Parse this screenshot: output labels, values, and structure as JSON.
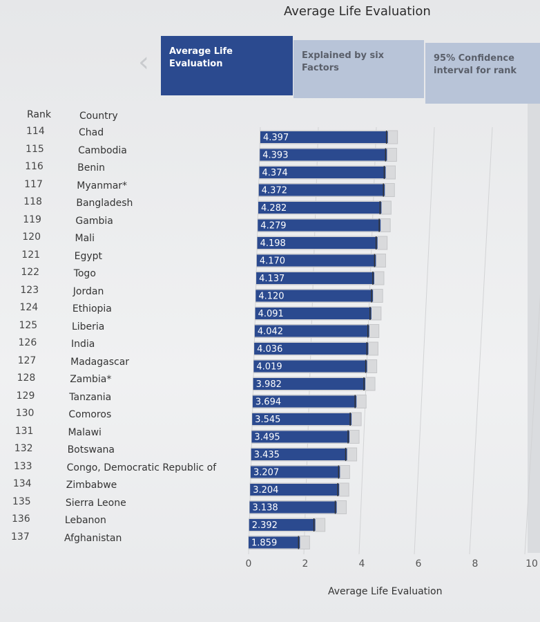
{
  "title": "Average Life Evaluation",
  "tabs": [
    {
      "label_line1": "Average Life",
      "label_line2": "Evaluation"
    },
    {
      "label_line1": "Explained by six",
      "label_line2": "Factors"
    },
    {
      "label_line1": "95% Confidence",
      "label_line2": "interval for rank"
    }
  ],
  "headers": {
    "rank": "Rank",
    "country": "Country"
  },
  "chart_data": {
    "type": "bar",
    "orientation": "horizontal",
    "ranks": [
      114,
      115,
      116,
      117,
      118,
      119,
      120,
      121,
      122,
      123,
      124,
      125,
      126,
      127,
      128,
      129,
      130,
      131,
      132,
      133,
      134,
      135,
      136,
      137
    ],
    "categories": [
      "Chad",
      "Cambodia",
      "Benin",
      "Myanmar*",
      "Bangladesh",
      "Gambia",
      "Mali",
      "Egypt",
      "Togo",
      "Jordan",
      "Ethiopia",
      "Liberia",
      "India",
      "Madagascar",
      "Zambia*",
      "Tanzania",
      "Comoros",
      "Malawi",
      "Botswana",
      "Congo, Democratic Republic of",
      "Zimbabwe",
      "Sierra Leone",
      "Lebanon",
      "Afghanistan"
    ],
    "values": [
      4.397,
      4.393,
      4.374,
      4.372,
      4.282,
      4.279,
      4.198,
      4.17,
      4.137,
      4.12,
      4.091,
      4.042,
      4.036,
      4.019,
      3.982,
      3.694,
      3.545,
      3.495,
      3.435,
      3.207,
      3.204,
      3.138,
      2.392,
      1.859
    ],
    "value_labels": [
      "4.397",
      "4.393",
      "4.374",
      "4.372",
      "4.282",
      "4.279",
      "4.198",
      "4.170",
      "4.137",
      "4.120",
      "4.091",
      "4.042",
      "4.036",
      "4.019",
      "3.982",
      "3.694",
      "3.545",
      "3.495",
      "3.435",
      "3.207",
      "3.204",
      "3.138",
      "2.392",
      "1.859"
    ],
    "xticks": [
      0,
      2,
      4,
      6,
      8,
      10
    ],
    "xlim": [
      0,
      10
    ],
    "xlabel": "Average Life Evaluation",
    "grid": true,
    "colors": {
      "bar": "#2b4a8f",
      "ci": "#d9dadc",
      "ci_edge": "#9a9a9a",
      "grid": "#d2d3d5"
    }
  }
}
